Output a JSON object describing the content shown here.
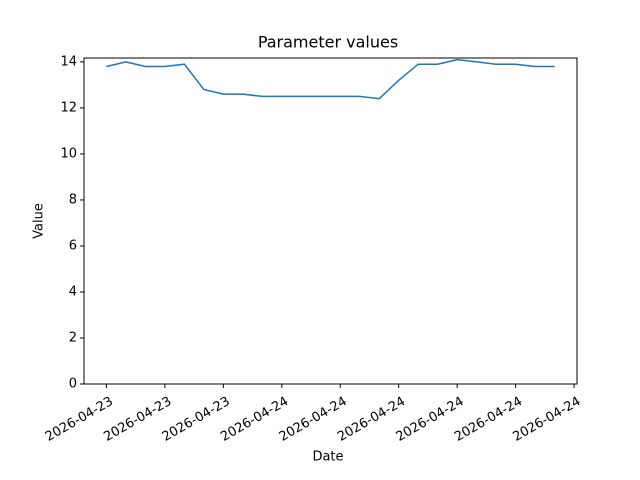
{
  "chart_data": {
    "type": "line",
    "title": "Parameter values",
    "x_label": "Date",
    "y_label": "Value",
    "x": [
      0,
      1,
      2,
      3,
      4,
      5,
      6,
      7,
      8,
      9,
      10,
      11,
      12,
      13,
      14,
      15,
      16,
      17,
      18,
      19,
      20,
      21,
      22,
      23
    ],
    "series": [
      {
        "name": "Value",
        "color": "#1f77b4",
        "values": [
          13.8,
          14.0,
          13.8,
          13.8,
          13.9,
          12.8,
          12.6,
          12.6,
          12.5,
          12.5,
          12.5,
          12.5,
          12.5,
          12.5,
          12.4,
          13.2,
          13.9,
          13.9,
          14.1,
          14.0,
          13.9,
          13.9,
          13.8,
          13.8
        ]
      }
    ],
    "xlim": [
      -1.15,
      24.15
    ],
    "xticks": [
      {
        "value": 0,
        "label": "2026-04-23"
      },
      {
        "value": 3,
        "label": "2026-04-23"
      },
      {
        "value": 6,
        "label": "2026-04-23"
      },
      {
        "value": 9,
        "label": "2026-04-24"
      },
      {
        "value": 12,
        "label": "2026-04-24"
      },
      {
        "value": 15,
        "label": "2026-04-24"
      },
      {
        "value": 18,
        "label": "2026-04-24"
      },
      {
        "value": 21,
        "label": "2026-04-24"
      },
      {
        "value": 24,
        "label": "2026-04-24"
      }
    ],
    "ylim": [
      0,
      14.17
    ],
    "yticks": [
      0,
      2,
      4,
      6,
      8,
      10,
      12,
      14
    ]
  }
}
